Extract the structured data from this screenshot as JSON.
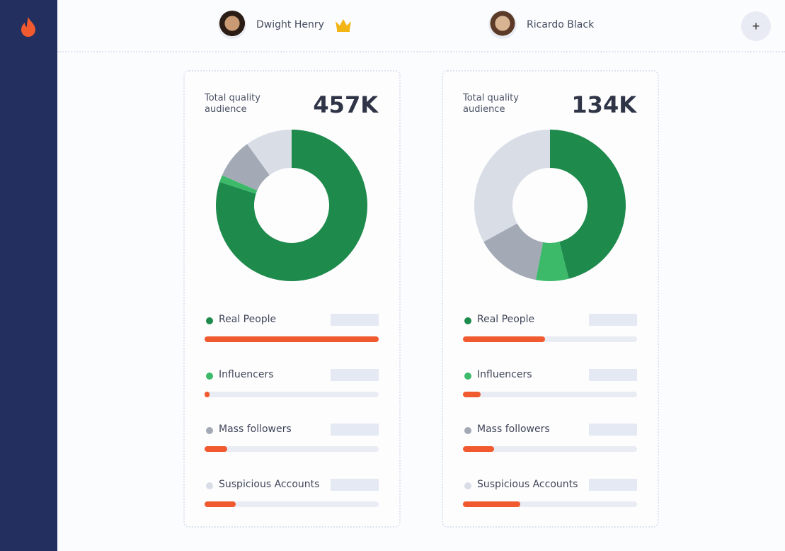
{
  "colors": {
    "sidebar": "#23305f",
    "bar": "#f15a2e",
    "real": "#1e8a4c",
    "influencers": "#3cba6a",
    "mass": "#a3a9b5",
    "suspicious": "#d8dde6"
  },
  "header": {
    "users": [
      {
        "name": "Dwight Henry",
        "badge": "crown-icon"
      },
      {
        "name": "Ricardo Black"
      }
    ],
    "add_label": "+"
  },
  "cards": [
    {
      "title": "Total quality audience",
      "value": "457K",
      "segments": [
        {
          "label": "Real People",
          "percent": 80,
          "bar": 100
        },
        {
          "label": "Influencers",
          "percent": 1.5,
          "bar": 3
        },
        {
          "label": "Mass followers",
          "percent": 8.5,
          "bar": 13
        },
        {
          "label": "Suspicious Accounts",
          "percent": 10,
          "bar": 18
        }
      ]
    },
    {
      "title": "Total quality audience",
      "value": "134K",
      "segments": [
        {
          "label": "Real People",
          "percent": 46,
          "bar": 47
        },
        {
          "label": "Influencers",
          "percent": 7,
          "bar": 10
        },
        {
          "label": "Mass followers",
          "percent": 14,
          "bar": 18
        },
        {
          "label": "Suspicious Accounts",
          "percent": 33,
          "bar": 33
        }
      ]
    }
  ]
}
